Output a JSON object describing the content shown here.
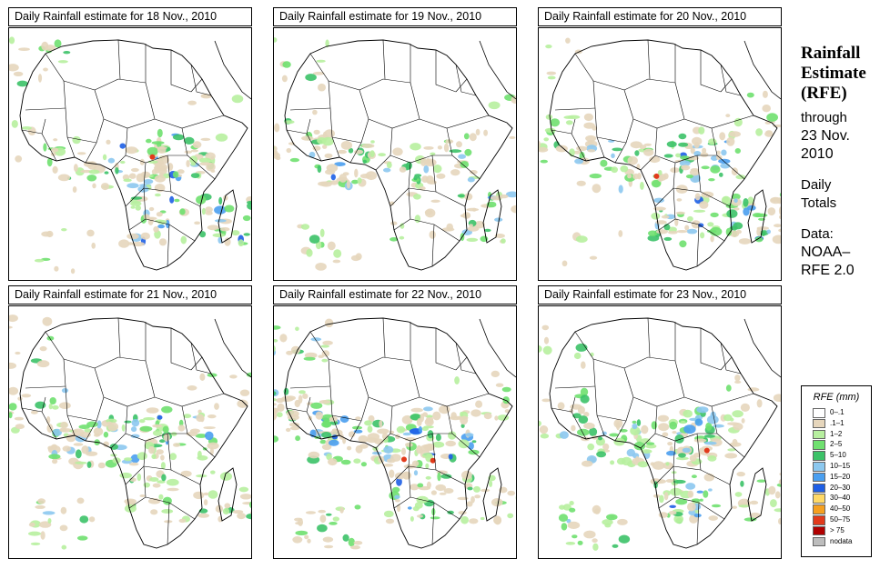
{
  "panels": [
    {
      "title": "Daily Rainfall estimate for  18 Nov., 2010"
    },
    {
      "title": "Daily Rainfall estimate for  19 Nov., 2010"
    },
    {
      "title": "Daily Rainfall estimate for  20 Nov., 2010"
    },
    {
      "title": "Daily Rainfall estimate for  21 Nov., 2010"
    },
    {
      "title": "Daily Rainfall estimate for  22 Nov., 2010"
    },
    {
      "title": "Daily Rainfall estimate for  23 Nov., 2010"
    }
  ],
  "sidebar": {
    "title_line1": "Rainfall",
    "title_line2": "Estimate",
    "title_line3": "(RFE)",
    "through_label": "through",
    "through_date": "23 Nov.",
    "through_year": "2010",
    "daily_line1": "Daily",
    "daily_line2": "Totals",
    "data_line1": "Data:",
    "data_line2": "NOAA–",
    "data_line3": "RFE 2.0"
  },
  "legend": {
    "title": "RFE (mm)",
    "items": [
      {
        "label": "0–.1",
        "color": "#ffffff"
      },
      {
        "label": ".1–1",
        "color": "#e6d6bc"
      },
      {
        "label": "1–2",
        "color": "#b7ef9f"
      },
      {
        "label": "2–5",
        "color": "#6fe06f"
      },
      {
        "label": "5–10",
        "color": "#3cc268"
      },
      {
        "label": "10–15",
        "color": "#8cc8ef"
      },
      {
        "label": "15–20",
        "color": "#4a9ff0"
      },
      {
        "label": "20–30",
        "color": "#1e5fe6"
      },
      {
        "label": "30–40",
        "color": "#ffd966"
      },
      {
        "label": "40–50",
        "color": "#f5a020"
      },
      {
        "label": "50–75",
        "color": "#e23a1b"
      },
      {
        "label": "> 75",
        "color": "#b00000"
      },
      {
        "label": "nodata",
        "color": "#bdbdbd"
      }
    ]
  }
}
